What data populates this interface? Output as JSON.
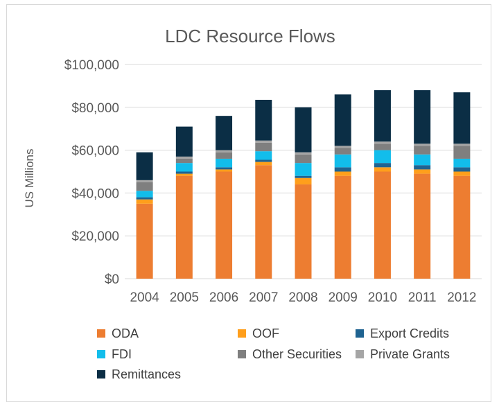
{
  "chart_data": {
    "type": "bar",
    "stacked": true,
    "title": "LDC Resource Flows",
    "ylabel": "US Millions",
    "xlabel": "",
    "ylim": [
      0,
      100000
    ],
    "yticks": [
      "$0",
      "$20,000",
      "$40,000",
      "$60,000",
      "$80,000",
      "$100,000"
    ],
    "ytick_values": [
      0,
      20000,
      40000,
      60000,
      80000,
      100000
    ],
    "grid": true,
    "legend_position": "bottom",
    "categories": [
      "2004",
      "2005",
      "2006",
      "2007",
      "2008",
      "2009",
      "2010",
      "2011",
      "2012"
    ],
    "series": [
      {
        "name": "ODA",
        "color": "#ED7D31",
        "values": [
          35000,
          48000,
          50000,
          53000,
          44000,
          48000,
          50000,
          49000,
          48000
        ]
      },
      {
        "name": "OOF",
        "color": "#FF9F1C",
        "values": [
          2000,
          1000,
          1000,
          1500,
          3000,
          2000,
          2000,
          2000,
          2000
        ]
      },
      {
        "name": "Export Credits",
        "color": "#1F6391",
        "values": [
          1000,
          1000,
          1000,
          1000,
          1000,
          2000,
          2000,
          2000,
          2000
        ]
      },
      {
        "name": "FDI",
        "color": "#12BDEB",
        "values": [
          3000,
          4000,
          4000,
          4000,
          6000,
          6000,
          6000,
          5000,
          4000
        ]
      },
      {
        "name": "Other Securities",
        "color": "#7F7F7F",
        "values": [
          4000,
          2000,
          3000,
          4000,
          4000,
          3000,
          3000,
          4000,
          6000
        ]
      },
      {
        "name": "Private Grants",
        "color": "#A5A5A5",
        "values": [
          1000,
          1000,
          1000,
          1000,
          1000,
          1000,
          1000,
          1000,
          1000
        ]
      },
      {
        "name": "Remittances",
        "color": "#0B2E45",
        "values": [
          13000,
          14000,
          16000,
          19000,
          21000,
          24000,
          24000,
          25000,
          24000
        ]
      }
    ]
  }
}
